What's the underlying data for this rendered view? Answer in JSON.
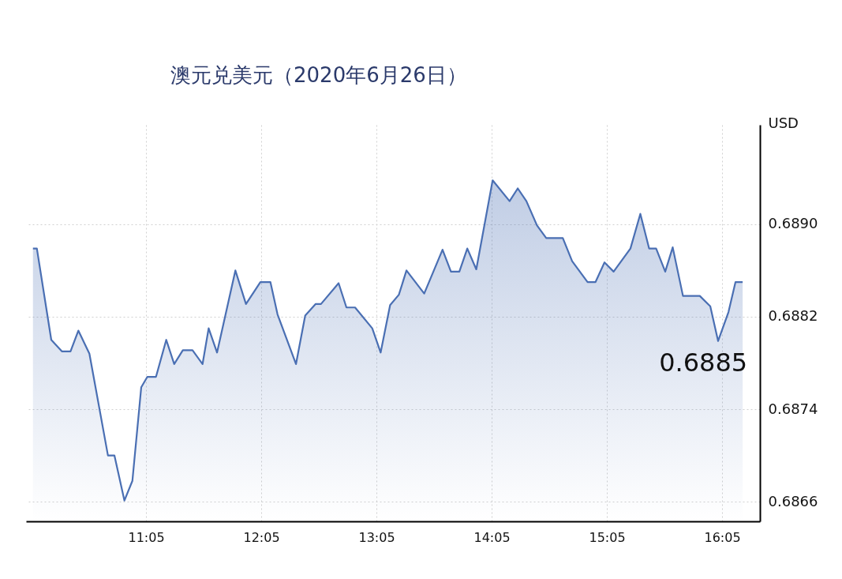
{
  "chart_data": {
    "type": "area",
    "title": "澳元兑美元（2020年6月26日）",
    "ylabel": "USD",
    "x": [
      10.102,
      10.136,
      10.261,
      10.353,
      10.428,
      10.496,
      10.592,
      10.753,
      10.809,
      10.896,
      10.965,
      11.042,
      11.095,
      11.17,
      11.259,
      11.328,
      11.403,
      11.487,
      11.574,
      11.627,
      11.7,
      11.859,
      11.951,
      12.076,
      12.163,
      12.225,
      12.385,
      12.465,
      12.556,
      12.602,
      12.755,
      12.823,
      12.898,
      13.047,
      13.12,
      13.202,
      13.278,
      13.344,
      13.498,
      13.657,
      13.73,
      13.803,
      13.872,
      13.95,
      14.092,
      14.239,
      14.31,
      14.385,
      14.477,
      14.557,
      14.701,
      14.782,
      14.916,
      14.985,
      15.063,
      15.142,
      15.288,
      15.374,
      15.45,
      15.511,
      15.59,
      15.655,
      15.744,
      15.89,
      15.981,
      16.049,
      16.139,
      16.2,
      16.262
    ],
    "series": [
      {
        "color": "#4a6fb3",
        "values": [
          0.68879,
          0.68879,
          0.688,
          0.6879,
          0.6879,
          0.68808,
          0.68788,
          0.687,
          0.687,
          0.68661,
          0.68678,
          0.68759,
          0.68768,
          0.68768,
          0.688,
          0.68779,
          0.68791,
          0.68791,
          0.68779,
          0.6881,
          0.68789,
          0.6886,
          0.68831,
          0.6885,
          0.6885,
          0.68822,
          0.68779,
          0.68821,
          0.68831,
          0.68831,
          0.68849,
          0.68828,
          0.68828,
          0.6881,
          0.68789,
          0.6883,
          0.68839,
          0.6886,
          0.6884,
          0.68878,
          0.68859,
          0.68859,
          0.68879,
          0.68861,
          0.68938,
          0.6892,
          0.68931,
          0.6892,
          0.68899,
          0.68888,
          0.68888,
          0.68868,
          0.6885,
          0.6885,
          0.68867,
          0.68859,
          0.68879,
          0.68909,
          0.68879,
          0.68879,
          0.68859,
          0.6888,
          0.68838,
          0.68838,
          0.68829,
          0.68799,
          0.68824,
          0.6885,
          0.6885
        ]
      }
    ],
    "xlim": [
      10.042,
      16.412
    ],
    "ylim": [
      0.68643,
      0.68986
    ],
    "xticks": [
      {
        "value": 11.0833,
        "label": "11:05"
      },
      {
        "value": 12.0833,
        "label": "12:05"
      },
      {
        "value": 13.0833,
        "label": "13:05"
      },
      {
        "value": 14.0833,
        "label": "14:05"
      },
      {
        "value": 15.0833,
        "label": "15:05"
      },
      {
        "value": 16.0833,
        "label": "16:05"
      }
    ],
    "yticks": [
      0.6866,
      0.6874,
      0.6882,
      {
        "value": 0.689,
        "label": "0.6890"
      }
    ],
    "grid": true,
    "line_style": "solid",
    "annotations": [
      {
        "text": "0.6885",
        "x": 16.262,
        "y": 0.6885
      }
    ]
  }
}
